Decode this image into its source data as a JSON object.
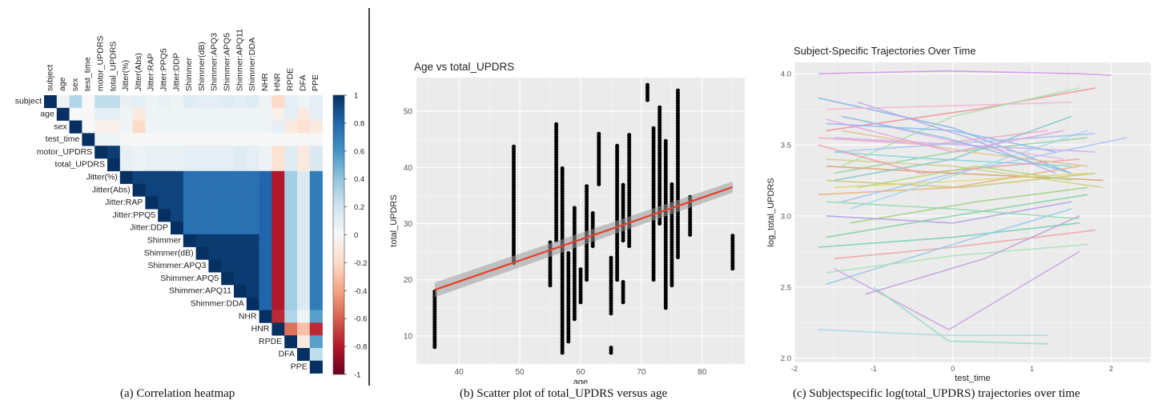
{
  "captions": {
    "a": "(a) Correlation heatmap",
    "b": "(b) Scatter plot of total_UPDRS versus age",
    "c": "(c) Subjectspecific log(total_UPDRS) trajectories over time"
  },
  "chart_data": [
    {
      "type": "heatmap",
      "title": "",
      "variables": [
        "subject",
        "age",
        "sex",
        "test_time",
        "motor_UPDRS",
        "total_UPDRS",
        "Jitter(%)",
        "Jitter(Abs)",
        "Jitter:RAP",
        "Jitter:PPQ5",
        "Jitter:DDP",
        "Shimmer",
        "Shimmer(dB)",
        "Shimmer:APQ3",
        "Shimmer:APQ5",
        "Shimmer:APQ11",
        "Shimmer:DDA",
        "NHR",
        "HNR",
        "RPDE",
        "DFA",
        "PPE"
      ],
      "triangle": "upper",
      "colorbar": {
        "ticks": [
          1,
          0.8,
          0.6,
          0.4,
          0.2,
          0,
          -0.2,
          -0.4,
          -0.6,
          -0.8,
          -1
        ],
        "range": [
          -1,
          1
        ],
        "colors": [
          "#67001f",
          "#f7f7f7",
          "#053061"
        ]
      },
      "colors": {
        "positive": "#0b3b7a",
        "negative": "#a50f15",
        "zero": "#f5f5f5"
      }
    },
    {
      "type": "scatter",
      "title": "Age vs total_UPDRS",
      "xlabel": "age",
      "ylabel": "total_UPDRS",
      "xlim": [
        33,
        87
      ],
      "ylim": [
        5,
        56
      ],
      "xticks": [
        40,
        50,
        60,
        70,
        80
      ],
      "yticks": [
        10,
        20,
        30,
        40,
        50
      ],
      "subjects": [
        {
          "x": 36,
          "ymin": 8,
          "ymax": 18
        },
        {
          "x": 49,
          "ymin": 23,
          "ymax": 44
        },
        {
          "x": 55,
          "ymin": 19,
          "ymax": 27
        },
        {
          "x": 56,
          "ymin": 27,
          "ymax": 48
        },
        {
          "x": 57,
          "ymin": 7,
          "ymax": 40
        },
        {
          "x": 58,
          "ymin": 9,
          "ymax": 25
        },
        {
          "x": 59,
          "ymin": 13,
          "ymax": 33
        },
        {
          "x": 60,
          "ymin": 16,
          "ymax": 22
        },
        {
          "x": 61,
          "ymin": 20,
          "ymax": 37
        },
        {
          "x": 62,
          "ymin": 26,
          "ymax": 32
        },
        {
          "x": 63,
          "ymin": 37,
          "ymax": 46
        },
        {
          "x": 65,
          "ymin": 7,
          "ymax": 8
        },
        {
          "x": 65,
          "ymin": 14,
          "ymax": 24
        },
        {
          "x": 66,
          "ymin": 20,
          "ymax": 44
        },
        {
          "x": 67,
          "ymin": 16,
          "ymax": 20
        },
        {
          "x": 67,
          "ymin": 27,
          "ymax": 37
        },
        {
          "x": 68,
          "ymin": 26,
          "ymax": 46
        },
        {
          "x": 71,
          "ymin": 52,
          "ymax": 55
        },
        {
          "x": 72,
          "ymin": 20,
          "ymax": 47
        },
        {
          "x": 73,
          "ymin": 30,
          "ymax": 51
        },
        {
          "x": 74,
          "ymin": 15,
          "ymax": 45
        },
        {
          "x": 75,
          "ymin": 19,
          "ymax": 37
        },
        {
          "x": 76,
          "ymin": 24,
          "ymax": 54
        },
        {
          "x": 78,
          "ymin": 28,
          "ymax": 35
        },
        {
          "x": 85,
          "ymin": 22,
          "ymax": 28
        }
      ],
      "fit_line": {
        "x": [
          36,
          85
        ],
        "y": [
          18.2,
          36.5
        ],
        "color": "#e2402a"
      },
      "point_color": "#000000",
      "grid": true
    },
    {
      "type": "line",
      "title": "Subject-Specific Trajectories Over Time",
      "xlabel": "test_time",
      "ylabel": "log_total_UPDRS",
      "xlim": [
        -2,
        2.5
      ],
      "ylim": [
        1.97,
        4.08
      ],
      "xticks": [
        -2,
        -1,
        0,
        1,
        2
      ],
      "yticks": [
        2.0,
        2.5,
        3.0,
        3.5,
        4.0
      ],
      "series": [
        {
          "color": "#d38fe6",
          "x": [
            -1.7,
            -0.1,
            1.6,
            2.0
          ],
          "y": [
            4.0,
            4.02,
            4.0,
            3.99
          ]
        },
        {
          "color": "#7fb3e8",
          "x": [
            -1.7,
            0.0,
            1.5
          ],
          "y": [
            3.83,
            3.62,
            3.3
          ]
        },
        {
          "color": "#f28c9b",
          "x": [
            -1.6,
            0.3,
            1.8
          ],
          "y": [
            3.6,
            3.75,
            3.9
          ]
        },
        {
          "color": "#8fd19e",
          "x": [
            -1.5,
            0.0,
            1.7
          ],
          "y": [
            3.3,
            3.45,
            3.55
          ]
        },
        {
          "color": "#e6b3e6",
          "x": [
            -1.4,
            0.2,
            1.4
          ],
          "y": [
            3.7,
            3.5,
            3.4
          ]
        },
        {
          "color": "#c7c76a",
          "x": [
            -1.6,
            0.1,
            1.8
          ],
          "y": [
            3.25,
            3.2,
            3.3
          ]
        },
        {
          "color": "#7fd6d6",
          "x": [
            -1.5,
            -0.2,
            1.5
          ],
          "y": [
            3.45,
            3.4,
            3.35
          ]
        },
        {
          "color": "#f5a3c7",
          "x": [
            -1.7,
            -0.3,
            1.2
          ],
          "y": [
            3.55,
            3.5,
            3.6
          ]
        },
        {
          "color": "#a3c4f5",
          "x": [
            -1.4,
            0.0,
            2.2
          ],
          "y": [
            3.1,
            3.3,
            3.55
          ]
        },
        {
          "color": "#d9a066",
          "x": [
            -1.6,
            0.0,
            1.9
          ],
          "y": [
            3.35,
            3.3,
            3.25
          ]
        },
        {
          "color": "#9bd17a",
          "x": [
            -1.3,
            0.3,
            1.7
          ],
          "y": [
            2.95,
            3.1,
            3.2
          ]
        },
        {
          "color": "#b59be6",
          "x": [
            -1.6,
            0.0,
            1.5
          ],
          "y": [
            3.0,
            2.95,
            3.1
          ]
        },
        {
          "color": "#6fcfb5",
          "x": [
            -1.7,
            0.0,
            1.6
          ],
          "y": [
            2.78,
            2.85,
            2.95
          ]
        },
        {
          "color": "#f0a0a0",
          "x": [
            -1.5,
            0.0,
            1.8
          ],
          "y": [
            2.7,
            2.78,
            2.9
          ]
        },
        {
          "color": "#90c8e8",
          "x": [
            -1.6,
            0.0,
            1.5
          ],
          "y": [
            2.52,
            2.8,
            3.05
          ]
        },
        {
          "color": "#c9a0e0",
          "x": [
            -1.5,
            -0.05,
            1.6
          ],
          "y": [
            2.63,
            2.2,
            2.75
          ]
        },
        {
          "color": "#8fdcc8",
          "x": [
            -1.0,
            -0.05,
            1.2
          ],
          "y": [
            2.5,
            2.12,
            2.1
          ]
        },
        {
          "color": "#a8d8e8",
          "x": [
            -1.7,
            -0.1,
            1.2
          ],
          "y": [
            2.2,
            2.16,
            2.16
          ]
        },
        {
          "color": "#e6d36a",
          "x": [
            -1.5,
            0.2,
            1.7
          ],
          "y": [
            3.2,
            3.25,
            3.3
          ]
        },
        {
          "color": "#f7b3d0",
          "x": [
            -1.6,
            0.3,
            1.5
          ],
          "y": [
            3.75,
            3.78,
            3.8
          ]
        },
        {
          "color": "#a6e0a6",
          "x": [
            -1.4,
            0.0,
            1.6
          ],
          "y": [
            3.35,
            3.7,
            3.9
          ]
        },
        {
          "color": "#86b8f0",
          "x": [
            -1.6,
            0.0,
            1.3
          ],
          "y": [
            3.65,
            3.6,
            3.45
          ]
        },
        {
          "color": "#d0a8f0",
          "x": [
            -1.5,
            0.1,
            1.8
          ],
          "y": [
            3.55,
            3.5,
            3.45
          ]
        },
        {
          "color": "#7ed0a0",
          "x": [
            -1.6,
            0.0,
            1.7
          ],
          "y": [
            2.85,
            3.0,
            3.15
          ]
        },
        {
          "color": "#e8b07a",
          "x": [
            -1.7,
            0.0,
            1.6
          ],
          "y": [
            3.15,
            3.2,
            3.35
          ]
        },
        {
          "color": "#9fd8f0",
          "x": [
            -1.3,
            0.1,
            1.7
          ],
          "y": [
            3.05,
            3.3,
            3.6
          ]
        },
        {
          "color": "#cfcf8a",
          "x": [
            -1.6,
            0.0,
            1.9
          ],
          "y": [
            3.4,
            3.35,
            3.2
          ]
        },
        {
          "color": "#b8a8e8",
          "x": [
            -1.2,
            0.2,
            1.3
          ],
          "y": [
            3.8,
            3.55,
            3.3
          ]
        },
        {
          "color": "#f09aa8",
          "x": [
            -1.7,
            -0.4,
            1.6
          ],
          "y": [
            3.5,
            3.3,
            3.4
          ]
        },
        {
          "color": "#7ec8c8",
          "x": [
            -1.5,
            0.0,
            1.5
          ],
          "y": [
            3.25,
            3.4,
            3.7
          ]
        },
        {
          "color": "#a8e0b8",
          "x": [
            -1.6,
            0.0,
            1.7
          ],
          "y": [
            2.6,
            2.72,
            2.8
          ]
        },
        {
          "color": "#c0a0d8",
          "x": [
            -1.1,
            0.4,
            1.6
          ],
          "y": [
            2.45,
            2.7,
            3.0
          ]
        },
        {
          "color": "#e0c090",
          "x": [
            -1.4,
            0.2,
            1.7
          ],
          "y": [
            3.6,
            3.45,
            3.35
          ]
        },
        {
          "color": "#90d8b0",
          "x": [
            -1.6,
            0.0,
            1.6
          ],
          "y": [
            3.1,
            3.05,
            2.98
          ]
        },
        {
          "color": "#a0c0f0",
          "x": [
            -1.5,
            0.3,
            1.8
          ],
          "y": [
            3.45,
            3.52,
            3.58
          ]
        },
        {
          "color": "#e8a0e0",
          "x": [
            -1.6,
            0.0,
            1.4
          ],
          "y": [
            3.68,
            3.45,
            3.6
          ]
        },
        {
          "color": "#b0d878",
          "x": [
            -1.2,
            0.3,
            1.5
          ],
          "y": [
            3.2,
            3.35,
            3.25
          ]
        },
        {
          "color": "#88c0e0",
          "x": [
            -1.4,
            -0.1,
            1.5
          ],
          "y": [
            3.7,
            3.55,
            3.3
          ]
        }
      ],
      "grid": true
    }
  ]
}
